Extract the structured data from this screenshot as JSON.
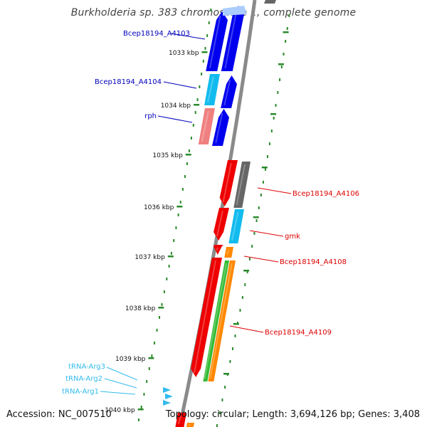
{
  "title": "Burkholderia sp. 383 chromosome 1, complete genome",
  "accession": "Accession: NC_007510",
  "summary": "Topology: circular; Length: 3,694,126 bp; Genes: 3,408",
  "colors": {
    "backbone": "#8a8a8a",
    "tick": "#2a8a2a",
    "forward_label": "#0000bb",
    "reverse_label": "#dd0000",
    "trna_label": "#33bbee",
    "blue": "#0000ee",
    "cyan": "#11bbee",
    "pink": "#f08080",
    "red": "#ee0000",
    "gray": "#666666",
    "orange": "#ff8800",
    "green": "#33bb33",
    "trna": "#33bbee"
  },
  "scale_labels": [
    "1033 kbp",
    "1034 kbp",
    "1035 kbp",
    "1036 kbp",
    "1037 kbp",
    "1038 kbp",
    "1039 kbp",
    "1040 kbp"
  ],
  "gene_labels": [
    {
      "text": "Bcep18194_A4103",
      "strand": "forward"
    },
    {
      "text": "Bcep18194_A4104",
      "strand": "forward"
    },
    {
      "text": "rph",
      "strand": "forward"
    },
    {
      "text": "Bcep18194_A4106",
      "strand": "reverse"
    },
    {
      "text": "gmk",
      "strand": "reverse"
    },
    {
      "text": "Bcep18194_A4108",
      "strand": "reverse"
    },
    {
      "text": "Bcep18194_A4109",
      "strand": "reverse"
    },
    {
      "text": "tRNA-Arg3",
      "strand": "trna"
    },
    {
      "text": "tRNA-Arg2",
      "strand": "trna"
    },
    {
      "text": "tRNA-Arg1",
      "strand": "trna"
    }
  ]
}
